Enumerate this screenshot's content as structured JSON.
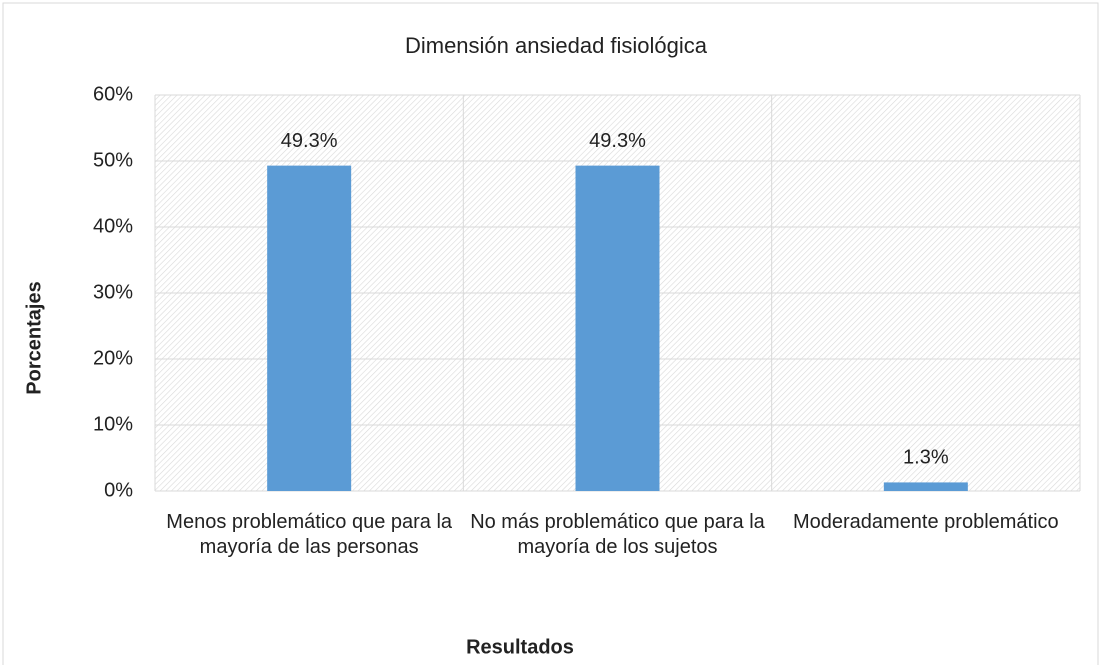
{
  "chart_data": {
    "type": "bar",
    "title": "Dimensión ansiedad fisiológica",
    "x_label": "Resultados",
    "y_label": "Porcentajes",
    "categories": [
      "Menos problemático que para la mayoría de las personas",
      "No más problemático que para la mayoría de los sujetos",
      "Moderadamente problemático"
    ],
    "values": [
      49.3,
      49.3,
      1.3
    ],
    "value_labels": [
      "49.3%",
      "49.3%",
      "1.3%"
    ],
    "color": "#5b9bd5",
    "ylim": [
      0,
      60
    ],
    "yticks": [
      {
        "value": 0,
        "label": "0%"
      },
      {
        "value": 10,
        "label": "10%"
      },
      {
        "value": 20,
        "label": "20%"
      },
      {
        "value": 30,
        "label": "30%"
      },
      {
        "value": 40,
        "label": "40%"
      },
      {
        "value": 50,
        "label": "50%"
      },
      {
        "value": 60,
        "label": "60%"
      }
    ],
    "grid": true
  }
}
